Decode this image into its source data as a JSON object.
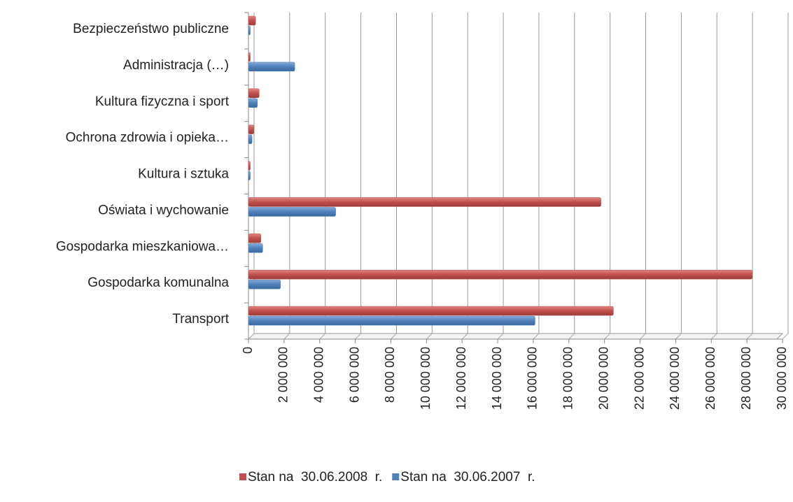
{
  "chart_data": {
    "type": "bar",
    "orientation": "horizontal",
    "categories": [
      "Transport",
      "Gospodarka komunalna",
      "Gospodarka mieszkaniowa…",
      "Oświata i wychowanie",
      "Kultura i sztuka",
      "Ochrona zdrowia i opieka…",
      "Kultura fizyczna i sport",
      "Administracja (…)",
      "Bezpieczeństwo publiczne"
    ],
    "series": [
      {
        "name": "Stan na  30.06.2008  r.",
        "color": "#c0504d",
        "values": [
          20500000,
          28300000,
          700000,
          19800000,
          100000,
          300000,
          600000,
          100000,
          400000
        ]
      },
      {
        "name": "Stan na  30.06.2007  r.",
        "color": "#4f81bd",
        "values": [
          16100000,
          1800000,
          800000,
          4900000,
          100000,
          200000,
          500000,
          2600000,
          100000
        ]
      }
    ],
    "xlim": [
      0,
      30000000
    ],
    "xticks": [
      0,
      {
        "value": 2000000,
        "label": "2 000 000"
      },
      {
        "value": 4000000,
        "label": "4 000 000"
      },
      {
        "value": 6000000,
        "label": "6 000 000"
      },
      {
        "value": 8000000,
        "label": "8 000 000"
      },
      {
        "value": 10000000,
        "label": "10 000 000"
      },
      {
        "value": 12000000,
        "label": "12 000 000"
      },
      {
        "value": 14000000,
        "label": "14 000 000"
      },
      {
        "value": 16000000,
        "label": "16 000 000"
      },
      {
        "value": 18000000,
        "label": "18 000 000"
      },
      {
        "value": 20000000,
        "label": "20 000 000"
      },
      {
        "value": 22000000,
        "label": "22 000 000"
      },
      {
        "value": 24000000,
        "label": "24 000 000"
      },
      {
        "value": 26000000,
        "label": "26 000 000"
      },
      {
        "value": 28000000,
        "label": "28 000 000"
      },
      {
        "value": 30000000,
        "label": "30 000 000"
      }
    ],
    "grid": true,
    "legend": "bottom"
  }
}
